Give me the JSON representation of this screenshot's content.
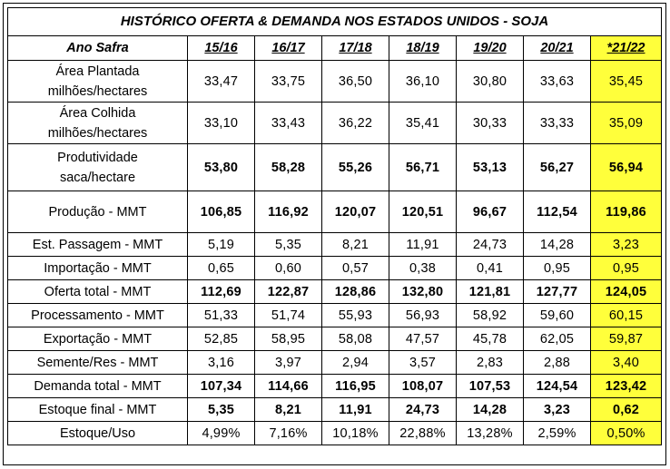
{
  "title": "HISTÓRICO OFERTA & DEMANDA NOS ESTADOS UNIDOS - SOJA",
  "header": {
    "label": "Ano Safra",
    "years": [
      "15/16",
      "16/17",
      "17/18",
      "18/19",
      "19/20",
      "20/21",
      "*21/22"
    ]
  },
  "rows": [
    {
      "label1": "Área Plantada",
      "label2": "milhões/hectares",
      "values": [
        "33,47",
        "33,75",
        "36,50",
        "36,10",
        "30,80",
        "33,63",
        "35,45"
      ],
      "bold": false
    },
    {
      "label1": "Área Colhida",
      "label2": "milhões/hectares",
      "values": [
        "33,10",
        "33,43",
        "36,22",
        "35,41",
        "30,33",
        "33,33",
        "35,09"
      ],
      "bold": false
    },
    {
      "label1": "Produtividade",
      "label2": "saca/hectare",
      "values": [
        "53,80",
        "58,28",
        "55,26",
        "56,71",
        "53,13",
        "56,27",
        "56,94"
      ],
      "bold": true
    },
    {
      "label1": "Produção - MMT",
      "values": [
        "106,85",
        "116,92",
        "120,07",
        "120,51",
        "96,67",
        "112,54",
        "119,86"
      ],
      "bold": true
    },
    {
      "label1": "Est. Passagem - MMT",
      "values": [
        "5,19",
        "5,35",
        "8,21",
        "11,91",
        "24,73",
        "14,28",
        "3,23"
      ],
      "bold": false
    },
    {
      "label1": "Importação - MMT",
      "values": [
        "0,65",
        "0,60",
        "0,57",
        "0,38",
        "0,41",
        "0,95",
        "0,95"
      ],
      "bold": false
    },
    {
      "label1": "Oferta total - MMT",
      "values": [
        "112,69",
        "122,87",
        "128,86",
        "132,80",
        "121,81",
        "127,77",
        "124,05"
      ],
      "bold": true
    },
    {
      "label1": "Processamento - MMT",
      "values": [
        "51,33",
        "51,74",
        "55,93",
        "56,93",
        "58,92",
        "59,60",
        "60,15"
      ],
      "bold": false
    },
    {
      "label1": "Exportação - MMT",
      "values": [
        "52,85",
        "58,95",
        "58,08",
        "47,57",
        "45,78",
        "62,05",
        "59,87"
      ],
      "bold": false
    },
    {
      "label1": "Semente/Res - MMT",
      "values": [
        "3,16",
        "3,97",
        "2,94",
        "3,57",
        "2,83",
        "2,88",
        "3,40"
      ],
      "bold": false
    },
    {
      "label1": "Demanda total - MMT",
      "values": [
        "107,34",
        "114,66",
        "116,95",
        "108,07",
        "107,53",
        "124,54",
        "123,42"
      ],
      "bold": true
    },
    {
      "label1": "Estoque final - MMT",
      "values": [
        "5,35",
        "8,21",
        "11,91",
        "24,73",
        "14,28",
        "3,23",
        "0,62"
      ],
      "bold": true
    },
    {
      "label1": "Estoque/Uso",
      "values": [
        "4,99%",
        "7,16%",
        "10,18%",
        "22,88%",
        "13,28%",
        "2,59%",
        "0,50%"
      ],
      "bold": false
    }
  ],
  "colors": {
    "highlight": "#ffff3b",
    "border": "#000000"
  }
}
